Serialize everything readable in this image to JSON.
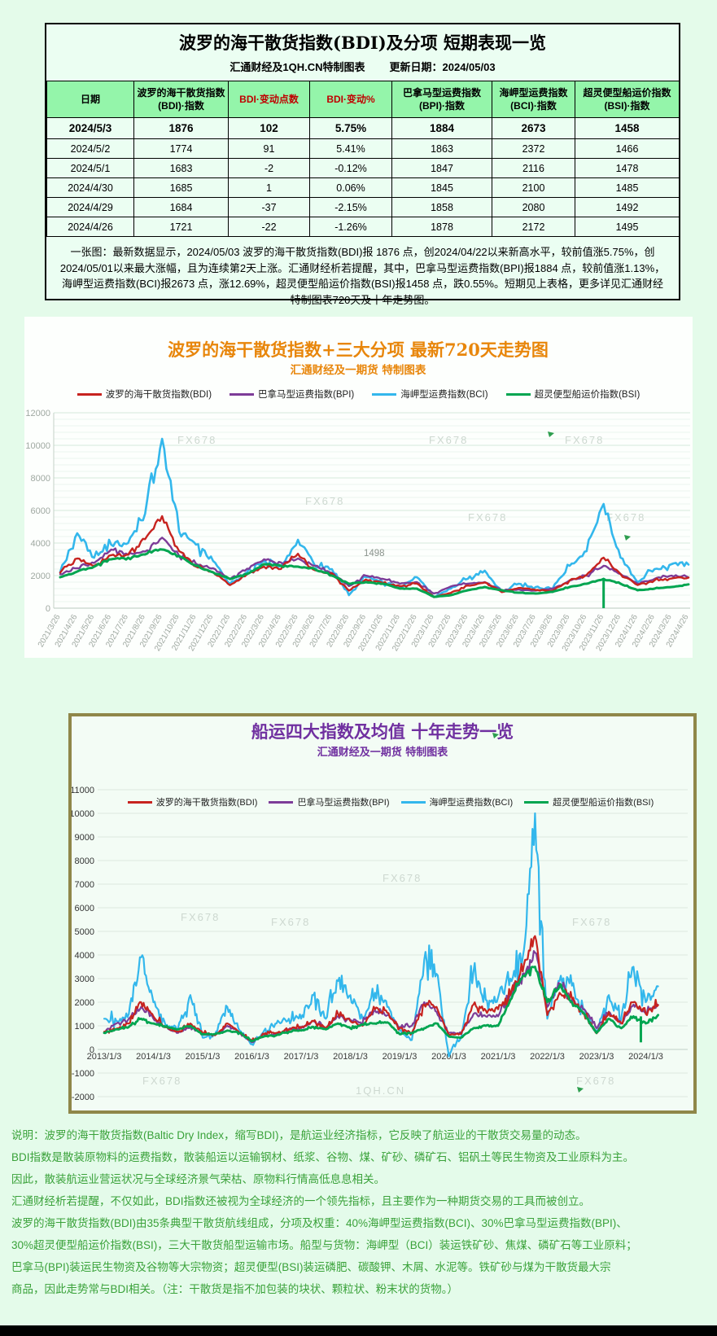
{
  "page": {
    "background": "#E4FBEA",
    "watermark": "FX678",
    "watermark_site": "1QH.CN",
    "bottom_bar_color": "#000000"
  },
  "colors": {
    "bdi": "#C7231F",
    "bpi": "#7D3C98",
    "bci": "#33B7EC",
    "bsi": "#00A550",
    "table_header_bg": "#94F5AA",
    "accent_orange": "#E8860B",
    "accent_purple": "#7030A0",
    "note_green": "#3AA23A"
  },
  "table_section": {
    "title": "波罗的海干散货指数(BDI)及分项 短期表现一览",
    "source": "汇通财经及1QH.CN特制图表",
    "update": "更新日期：2024/05/03",
    "columns": [
      {
        "label": "日期",
        "red": false
      },
      {
        "label": "波罗的海干散货指数\n(BDI)·指数",
        "red": false
      },
      {
        "label": "BDI·变动点数",
        "red": true
      },
      {
        "label": "BDI·变动%",
        "red": true
      },
      {
        "label": "巴拿马型运费指数\n(BPI)·指数",
        "red": false
      },
      {
        "label": "海岬型运费指数\n(BCI)·指数",
        "red": false
      },
      {
        "label": "超灵便型船运价指数\n(BSI)·指数",
        "red": false
      }
    ],
    "rows": [
      [
        "2024/5/3",
        "1876",
        "102",
        "5.75%",
        "1884",
        "2673",
        "1458"
      ],
      [
        "2024/5/2",
        "1774",
        "91",
        "5.41%",
        "1863",
        "2372",
        "1466"
      ],
      [
        "2024/5/1",
        "1683",
        "-2",
        "-0.12%",
        "1847",
        "2116",
        "1478"
      ],
      [
        "2024/4/30",
        "1685",
        "1",
        "0.06%",
        "1845",
        "2100",
        "1485"
      ],
      [
        "2024/4/29",
        "1684",
        "-37",
        "-2.15%",
        "1858",
        "2080",
        "1492"
      ],
      [
        "2024/4/26",
        "1721",
        "-22",
        "-1.26%",
        "1878",
        "2172",
        "1495"
      ]
    ],
    "note": "一张图：最新数据显示，2024/05/03 波罗的海干散货指数(BDI)报 1876 点，创2024/04/22以来新高水平，较前值涨5.75%，创2024/05/01以来最大涨幅，且为连续第2天上涨。汇通财经析若提醒，其中，巴拿马型运费指数(BPI)报1884 点，较前值涨1.13%，海岬型运费指数(BCI)报2673 点，涨12.69%，超灵便型船运价指数(BSI)报1458 点，跌0.55%。短期见上表格，更多详见汇通财经特制图表720天及十年走势图。"
  },
  "chart_data": [
    {
      "type": "line",
      "title": "波罗的海干散货指数+三大分项  最新720天走势图",
      "subtitle": "汇通财经及一期货  特制图表",
      "ylim": [
        0,
        12000
      ],
      "ytick": 2000,
      "ytick_minor": 400,
      "grid": true,
      "legend_position": "top",
      "x_tick_rotation": -60,
      "categories": [
        "2021/3/26",
        "2021/4/26",
        "2021/5/26",
        "2021/6/26",
        "2021/7/26",
        "2021/8/26",
        "2021/9/26",
        "2021/10/26",
        "2021/11/26",
        "2021/12/26",
        "2022/1/26",
        "2022/2/26",
        "2022/3/26",
        "2022/4/26",
        "2022/5/26",
        "2022/6/26",
        "2022/7/26",
        "2022/8/26",
        "2022/9/26",
        "2022/10/26",
        "2022/11/26",
        "2022/12/26",
        "2023/1/26",
        "2023/2/26",
        "2023/3/26",
        "2023/4/26",
        "2023/5/26",
        "2023/6/26",
        "2023/7/26",
        "2023/8/26",
        "2023/9/26",
        "2023/10/26",
        "2023/11/26",
        "2023/12/26",
        "2024/1/26",
        "2024/2/26",
        "2024/3/26",
        "2024/4/26"
      ],
      "series": [
        {
          "name": "波罗的海干散货指数(BDI)",
          "color": "#C7231F",
          "values": [
            2178,
            3050,
            2596,
            3255,
            3290,
            4235,
            5650,
            3500,
            2552,
            2217,
            1415,
            2076,
            2550,
            2404,
            3344,
            2331,
            2145,
            1082,
            1760,
            1534,
            1355,
            1515,
            677,
            933,
            1389,
            1576,
            983,
            1240,
            1110,
            1080,
            1701,
            2046,
            3100,
            2094,
            1418,
            1709,
            1821,
            1876
          ]
        },
        {
          "name": "巴拿马型运费指数(BPI)",
          "color": "#7D3C98",
          "values": [
            2085,
            2450,
            2780,
            3600,
            3280,
            3480,
            4328,
            3200,
            2722,
            2450,
            1771,
            2419,
            3000,
            2812,
            3050,
            2600,
            2162,
            1355,
            2000,
            1800,
            1500,
            1600,
            903,
            1330,
            1500,
            1600,
            1100,
            1150,
            1080,
            1200,
            1700,
            2000,
            2600,
            2100,
            1500,
            1800,
            2000,
            1884
          ]
        },
        {
          "name": "海岬型运费指数(BCI)",
          "color": "#33B7EC",
          "values": [
            2200,
            4600,
            3100,
            3900,
            4000,
            5800,
            10400,
            4700,
            3900,
            2900,
            1500,
            2200,
            2900,
            2600,
            4200,
            2600,
            2400,
            800,
            1900,
            1600,
            1300,
            1900,
            700,
            1200,
            1800,
            2300,
            1000,
            1500,
            1300,
            1200,
            2600,
            3500,
            6400,
            3100,
            1600,
            2400,
            2700,
            2673
          ]
        },
        {
          "name": "超灵便型船运价指数(BSI)",
          "color": "#00A550",
          "values": [
            1900,
            2250,
            2550,
            3000,
            3100,
            3300,
            3600,
            3200,
            2600,
            2200,
            1800,
            2100,
            2700,
            2600,
            2550,
            2400,
            2000,
            1500,
            1600,
            1500,
            1200,
            1200,
            700,
            800,
            1100,
            1300,
            1100,
            950,
            900,
            1000,
            1300,
            1500,
            1800,
            1500,
            1100,
            1200,
            1300,
            1458
          ]
        }
      ],
      "annotations": [
        {
          "text": "1498",
          "x": "2022/9/26",
          "y": 3200
        }
      ],
      "glitch": {
        "series": "超灵便型船运价指数(BSI)",
        "category_index": 32,
        "to_value": 0
      }
    },
    {
      "type": "line",
      "title": "船运四大指数及均值 十年走势一览",
      "subtitle": "汇通财经及一期货 特制图表",
      "ylim": [
        -2000,
        11000
      ],
      "ytick": 1000,
      "grid": true,
      "legend_position": "top",
      "x_tick_labels": [
        "2013/1/3",
        "2014/1/3",
        "2015/1/3",
        "2016/1/3",
        "2017/1/3",
        "2018/1/3",
        "2019/1/3",
        "2020/1/3",
        "2021/1/3",
        "2022/1/3",
        "2023/1/3",
        "2024/1/3"
      ],
      "categories": [
        "2013/1",
        "2013/4",
        "2013/7",
        "2013/10",
        "2014/1",
        "2014/4",
        "2014/7",
        "2014/10",
        "2015/1",
        "2015/4",
        "2015/7",
        "2015/10",
        "2016/1",
        "2016/4",
        "2016/7",
        "2016/10",
        "2017/1",
        "2017/4",
        "2017/7",
        "2017/10",
        "2018/1",
        "2018/4",
        "2018/7",
        "2018/10",
        "2019/1",
        "2019/4",
        "2019/7",
        "2019/10",
        "2020/1",
        "2020/4",
        "2020/7",
        "2020/10",
        "2021/1",
        "2021/4",
        "2021/7",
        "2021/10",
        "2022/1",
        "2022/4",
        "2022/7",
        "2022/10",
        "2023/1",
        "2023/4",
        "2023/7",
        "2023/10",
        "2024/1",
        "2024/4"
      ],
      "series": [
        {
          "name": "波罗的海干散货指数(BDI)",
          "color": "#C7231F",
          "values": [
            750,
            880,
            1100,
            2000,
            1400,
            950,
            750,
            1100,
            700,
            600,
            1100,
            700,
            350,
            650,
            700,
            850,
            950,
            1200,
            900,
            1500,
            1200,
            1000,
            1700,
            1550,
            900,
            700,
            1900,
            1800,
            600,
            650,
            1900,
            1650,
            1700,
            2300,
            3300,
            4800,
            1450,
            2400,
            2150,
            1500,
            680,
            1580,
            1110,
            2000,
            1500,
            1876
          ]
        },
        {
          "name": "巴拿马型运费指数(BPI)",
          "color": "#7D3C98",
          "values": [
            740,
            1100,
            1300,
            1800,
            1300,
            950,
            700,
            950,
            650,
            600,
            1000,
            700,
            300,
            600,
            650,
            850,
            900,
            1200,
            900,
            1400,
            1250,
            1150,
            1650,
            1450,
            950,
            1000,
            2000,
            1600,
            700,
            700,
            1500,
            1400,
            1400,
            2300,
            3200,
            4100,
            1800,
            2800,
            2100,
            1700,
            900,
            1600,
            1100,
            1900,
            1550,
            1884
          ]
        },
        {
          "name": "海岬型运费指数(BCI)",
          "color": "#33B7EC",
          "values": [
            1300,
            1200,
            1500,
            3900,
            2000,
            1000,
            900,
            2300,
            500,
            600,
            1800,
            800,
            220,
            800,
            1100,
            1300,
            1300,
            2300,
            1300,
            2900,
            2300,
            1300,
            2400,
            1800,
            800,
            400,
            3800,
            3200,
            -300,
            500,
            3300,
            2100,
            2200,
            3000,
            3900,
            10000,
            1300,
            2900,
            2700,
            1700,
            690,
            2300,
            1300,
            3500,
            2000,
            2673
          ]
        },
        {
          "name": "超灵便型船运价指数(BSI)",
          "color": "#00A550",
          "values": [
            700,
            850,
            950,
            1300,
            1100,
            950,
            850,
            1000,
            650,
            650,
            800,
            700,
            350,
            550,
            600,
            750,
            800,
            950,
            850,
            1100,
            900,
            1050,
            1100,
            1150,
            650,
            700,
            900,
            1100,
            550,
            500,
            900,
            1000,
            1000,
            2100,
            3100,
            3500,
            2000,
            2700,
            2000,
            1500,
            700,
            1300,
            900,
            1400,
            1100,
            1458
          ]
        }
      ],
      "glitch": {
        "series": "超灵便型船运价指数(BSI)",
        "category_index": 43.6,
        "from_value": 1400,
        "to_value": 300
      }
    }
  ],
  "footnotes": [
    "说明：波罗的海干散货指数(Baltic Dry Index，缩写BDI)，是航运业经济指标，它反映了航运业的干散货交易量的动态。",
    "BDI指数是散装原物料的运费指数，散装船运以运输钢材、纸浆、谷物、煤、矿砂、磷矿石、铝矾土等民生物资及工业原料为主。",
    "因此，散装航运业营运状况与全球经济景气荣枯、原物料行情高低息息相关。",
    "汇通财经析若提醒，不仅如此，BDI指数还被视为全球经济的一个领先指标，且主要作为一种期货交易的工具而被创立。",
    "波罗的海干散货指数(BDI)由35条典型干散货航线组成，分项及权重：40%海岬型运费指数(BCI)、30%巴拿马型运费指数(BPI)、",
    "30%超灵便型船运价指数(BSI)，三大干散货船型运输市场。船型与货物：海岬型（BCI）装运铁矿砂、焦煤、磷矿石等工业原料；",
    "巴拿马(BPI)装运民生物资及谷物等大宗物资；超灵便型(BSI)装运磷肥、碳酸钾、木屑、水泥等。铁矿砂与煤为干散货最大宗",
    "商品，因此走势常与BDI相关。（注：干散货是指不加包装的块状、颗粒状、粉末状的货物。）"
  ]
}
